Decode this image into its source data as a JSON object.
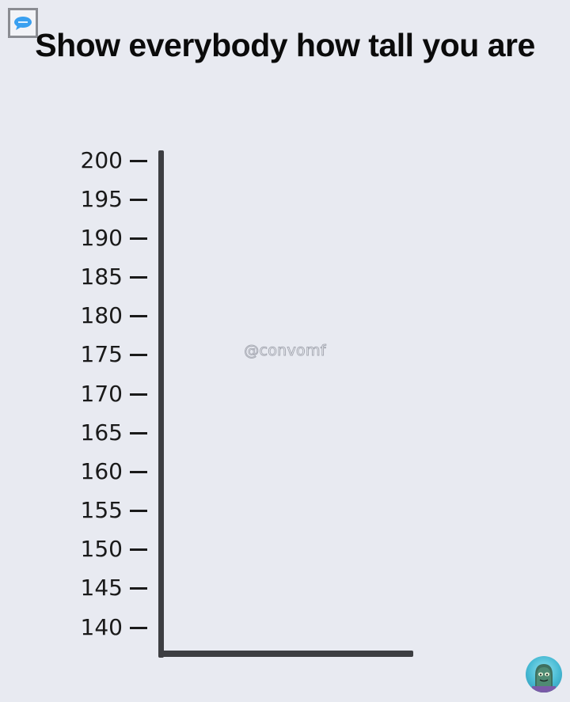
{
  "header": {
    "title": "Show everybody how tall you are"
  },
  "chart_data": {
    "type": "line",
    "title": "",
    "xlabel": "",
    "ylabel": "",
    "ticks": [
      "200",
      "195",
      "190",
      "185",
      "180",
      "175",
      "170",
      "165",
      "160",
      "155",
      "150",
      "145",
      "140"
    ],
    "ylim": [
      140,
      200
    ],
    "tick_step": 5,
    "series": [],
    "grid": false
  },
  "watermark": {
    "text": "@convomf"
  },
  "icons": {
    "corner_badge": "speech-bubble-icon",
    "avatar": "creature-avatar-icon"
  },
  "colors": {
    "background": "#e8eaf1",
    "axis": "#3d3e42",
    "text": "#111111"
  }
}
